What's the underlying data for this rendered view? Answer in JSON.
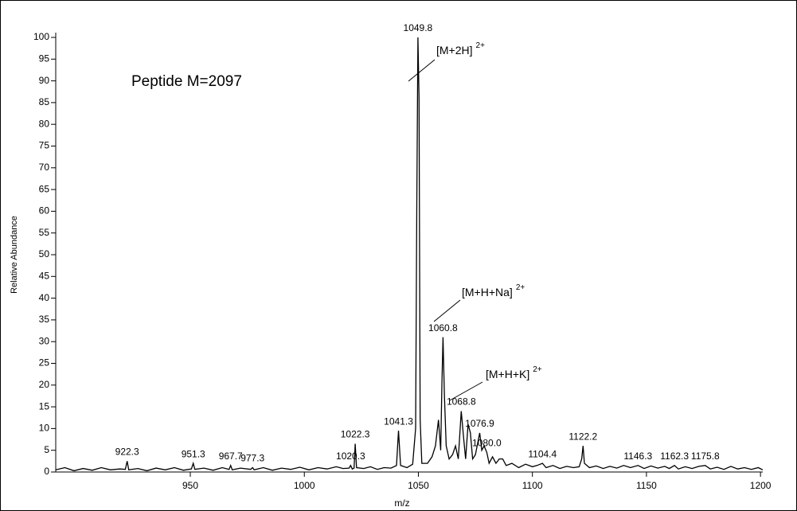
{
  "chart_data": {
    "type": "line",
    "title": "Peptide M=2097",
    "x_label": "m/z",
    "y_label": "Relative Abundance",
    "xlim": [
      891,
      1201
    ],
    "xticks": [
      950,
      1000,
      1050,
      1100,
      1150,
      1200
    ],
    "ylim": [
      0,
      100
    ],
    "yticks": [
      0,
      5,
      10,
      15,
      20,
      25,
      30,
      35,
      40,
      45,
      50,
      55,
      60,
      65,
      70,
      75,
      80,
      85,
      90,
      95,
      100
    ],
    "color": "#000000",
    "x": [
      891,
      895,
      899,
      903,
      907,
      911,
      915,
      919,
      921.5,
      922.3,
      923,
      927,
      931,
      935,
      939,
      943,
      947,
      950.5,
      951.3,
      952,
      956,
      960,
      964,
      967,
      967.7,
      968.4,
      972,
      976.5,
      977.3,
      978,
      982,
      986,
      990,
      994,
      998,
      1002,
      1006,
      1010,
      1014,
      1017,
      1019.6,
      1020.3,
      1021,
      1021.8,
      1022.3,
      1022.9,
      1026,
      1029,
      1032,
      1035,
      1038,
      1040.4,
      1041.3,
      1042.2,
      1045,
      1047.5,
      1048.8,
      1049.3,
      1049.8,
      1050.3,
      1050.8,
      1051.5,
      1054,
      1056,
      1057.5,
      1058.8,
      1059.8,
      1060.3,
      1060.8,
      1061.4,
      1062.2,
      1063.5,
      1065,
      1066.3,
      1067.5,
      1068.8,
      1069.8,
      1070.7,
      1071.8,
      1072.8,
      1073.8,
      1075,
      1076.9,
      1077.8,
      1078.8,
      1080,
      1081,
      1082.5,
      1084,
      1085.5,
      1087,
      1088.5,
      1091,
      1094,
      1097,
      1100,
      1102,
      1104.4,
      1106,
      1109,
      1112,
      1115,
      1118,
      1120.5,
      1121.6,
      1122.2,
      1122.8,
      1125,
      1128,
      1131,
      1134,
      1137,
      1140,
      1143,
      1146.3,
      1149,
      1152,
      1155,
      1158,
      1160,
      1162.3,
      1164,
      1167,
      1170,
      1173,
      1175.8,
      1178,
      1181,
      1184,
      1187,
      1190,
      1193,
      1196,
      1199,
      1201
    ],
    "values": [
      0.5,
      1,
      0.3,
      0.8,
      0.4,
      1,
      0.5,
      0.7,
      0.6,
      2.5,
      0.5,
      0.8,
      0.3,
      0.9,
      0.5,
      1,
      0.4,
      0.7,
      2,
      0.6,
      0.9,
      0.4,
      1,
      0.6,
      1.5,
      0.5,
      0.9,
      0.6,
      1,
      0.5,
      1,
      0.4,
      0.9,
      0.6,
      1.1,
      0.5,
      1,
      0.7,
      1.2,
      0.8,
      0.9,
      1.5,
      0.7,
      0.9,
      6.5,
      1,
      0.8,
      1.2,
      0.6,
      1,
      0.9,
      1.5,
      9.5,
      1.5,
      1,
      1.8,
      10,
      62,
      100,
      86,
      12,
      2,
      2,
      3.5,
      6,
      12,
      5,
      20,
      31,
      18,
      6,
      3,
      4,
      6,
      3,
      14,
      8,
      3,
      11,
      9,
      3,
      4,
      9,
      5,
      6,
      4.5,
      2,
      3.5,
      2,
      3,
      3,
      1.5,
      2,
      1,
      1.8,
      1.2,
      1.5,
      2,
      1,
      1.5,
      0.8,
      1.3,
      1,
      1.2,
      3,
      6,
      2,
      1,
      1.4,
      0.8,
      1.3,
      0.9,
      1.5,
      1,
      1.5,
      0.8,
      1.4,
      0.9,
      1.3,
      0.8,
      1.5,
      0.7,
      1.2,
      0.8,
      1.3,
      1.5,
      0.7,
      1.1,
      0.6,
      1.3,
      0.7,
      1,
      0.6,
      1,
      0.5
    ],
    "peak_labels": [
      {
        "x": 922.3,
        "y": 2.5
      },
      {
        "x": 951.3,
        "y": 2
      },
      {
        "x": 967.7,
        "y": 1.5
      },
      {
        "x": 977.3,
        "y": 1
      },
      {
        "x": 1020.3,
        "y": 1.5
      },
      {
        "x": 1022.3,
        "y": 6.5
      },
      {
        "x": 1041.3,
        "y": 9.5
      },
      {
        "x": 1049.8,
        "y": 100
      },
      {
        "x": 1060.8,
        "y": 31
      },
      {
        "x": 1068.8,
        "y": 14
      },
      {
        "x": 1076.9,
        "y": 9
      },
      {
        "x": {
          "value": 1080,
          "label": "1080.0"
        },
        "y": 4.5
      },
      {
        "x": 1104.4,
        "y": 2
      },
      {
        "x": 1122.2,
        "y": 6
      },
      {
        "x": 1146.3,
        "y": 1.5
      },
      {
        "x": 1162.3,
        "y": 1.5
      },
      {
        "x": 1175.8,
        "y": 1.5
      }
    ],
    "annotations": [
      {
        "text": "[M+2H]",
        "sup": "2+"
      },
      {
        "text": "[M+H+Na]",
        "sup": "2+"
      },
      {
        "text": "[M+H+K]",
        "sup": "2+"
      }
    ]
  }
}
